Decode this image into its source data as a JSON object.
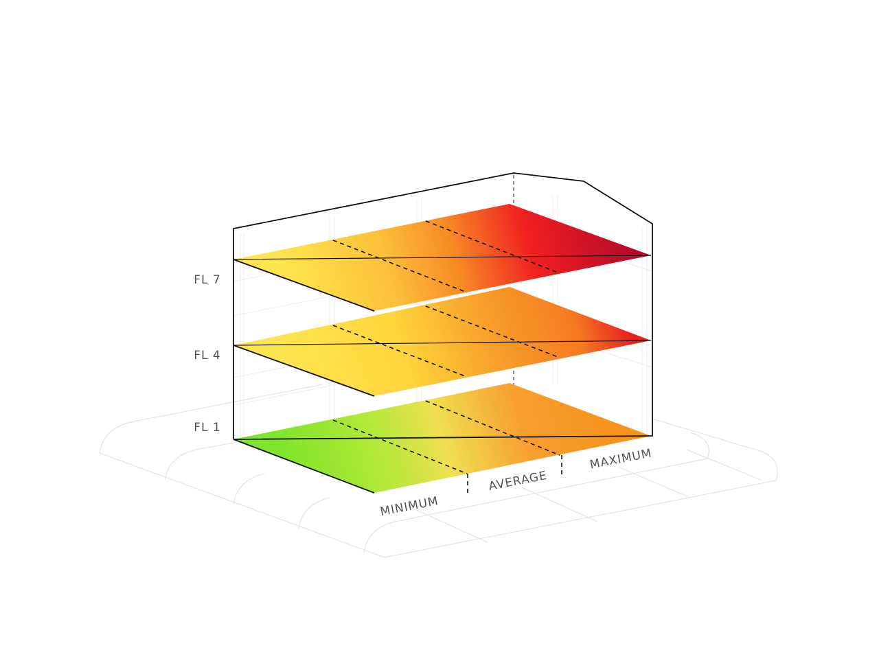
{
  "floors": [
    {
      "label": "FL 7"
    },
    {
      "label": "FL 4"
    },
    {
      "label": "FL 1"
    }
  ],
  "zones": [
    {
      "label": "MINIMUM"
    },
    {
      "label": "AVERAGE"
    },
    {
      "label": "MAXIMUM"
    }
  ]
}
